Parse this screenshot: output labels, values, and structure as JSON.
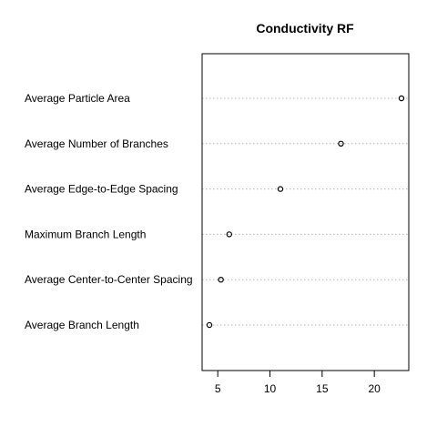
{
  "chart_data": {
    "type": "scatter",
    "title": "Conductivity RF",
    "xlabel": "",
    "ylabel": "",
    "categories": [
      "Average Particle Area",
      "Average Number of Branches",
      "Average Edge-to-Edge Spacing",
      "Maximum Branch Length",
      "Average Center-to-Center Spacing",
      "Average Branch Length"
    ],
    "values": [
      22.6,
      16.8,
      11.0,
      6.1,
      5.3,
      4.2
    ],
    "xlim": [
      3.5,
      23.3
    ],
    "xticks": [
      5,
      10,
      15,
      20
    ],
    "grid": false,
    "guide_lines": "dotted",
    "marker": "open-circle",
    "colors": {
      "marker": "#000000",
      "guide": "#b3b3b3",
      "frame": "#000000"
    }
  }
}
